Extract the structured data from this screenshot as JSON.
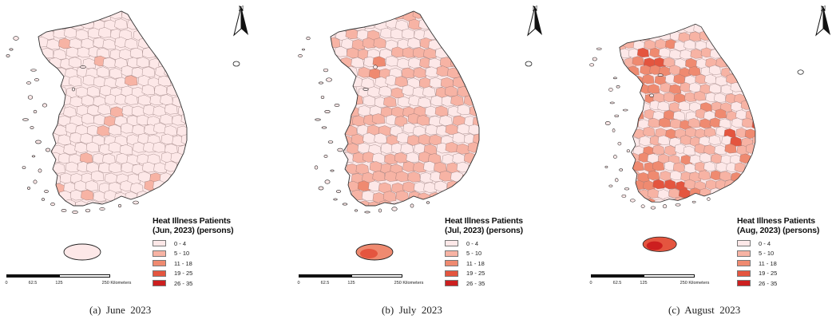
{
  "colors": {
    "class_0_4": "#fde8e8",
    "class_5_10": "#f7b3a4",
    "class_11_18": "#ef8a70",
    "class_19_25": "#e4553f",
    "class_26_35": "#cc1f1f",
    "border": "#333333"
  },
  "north_arrow": {
    "label": "N",
    "icon": "north-arrow-icon"
  },
  "scale_bar": {
    "labels": [
      "0",
      "62.5",
      "125",
      "250 Kilometers"
    ]
  },
  "legend_classes": [
    "0 - 4",
    "5 - 10",
    "11 - 18",
    "19 - 25",
    "26 - 35"
  ],
  "panels": [
    {
      "id": "june",
      "legend_title_line1": "Heat Illness Patients",
      "legend_title_line2": "(Jun, 2023) (persons)",
      "legend_labels": [
        "0 - 4",
        "5 - 10",
        "11 - 18",
        "19 - 25",
        "26 - 35"
      ],
      "caption": "(a)  June  2023",
      "jeju_class": 0
    },
    {
      "id": "july",
      "legend_title_line1": "Heat Illness Patients",
      "legend_title_line2": "(Jul, 2023) (persons)",
      "legend_labels": [
        "0 - 4",
        "5 - 10",
        "11 - 18",
        "19 - 25",
        "26 - 35"
      ],
      "caption": "(b)  July  2023",
      "jeju_class": 2
    },
    {
      "id": "august",
      "legend_title_line1": "Heat Illness Patients",
      "legend_title_line2": "(Aug, 2023) (persons)",
      "legend_labels": [
        "0 - 4",
        "5 - 10",
        "11 - 18",
        "19 - 25",
        "26 - 35"
      ],
      "caption": "(c)  August  2023",
      "jeju_class": 3
    }
  ]
}
